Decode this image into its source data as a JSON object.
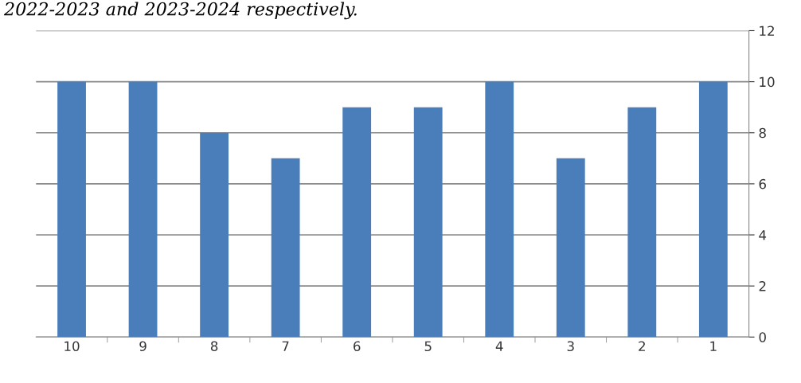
{
  "chart_data": {
    "type": "bar",
    "categories": [
      "10",
      "9",
      "8",
      "7",
      "6",
      "5",
      "4",
      "3",
      "2",
      "1"
    ],
    "values": [
      10,
      10,
      8,
      7,
      9,
      9,
      10,
      7,
      9,
      10
    ],
    "color": "#4a7ebb",
    "ylim": [
      0,
      12
    ],
    "yticks": [
      0,
      2,
      4,
      6,
      8,
      10,
      12
    ],
    "grid": "y",
    "legend": false,
    "annotations": [
      "2022-2023 and 2023-2024 respectively."
    ]
  }
}
